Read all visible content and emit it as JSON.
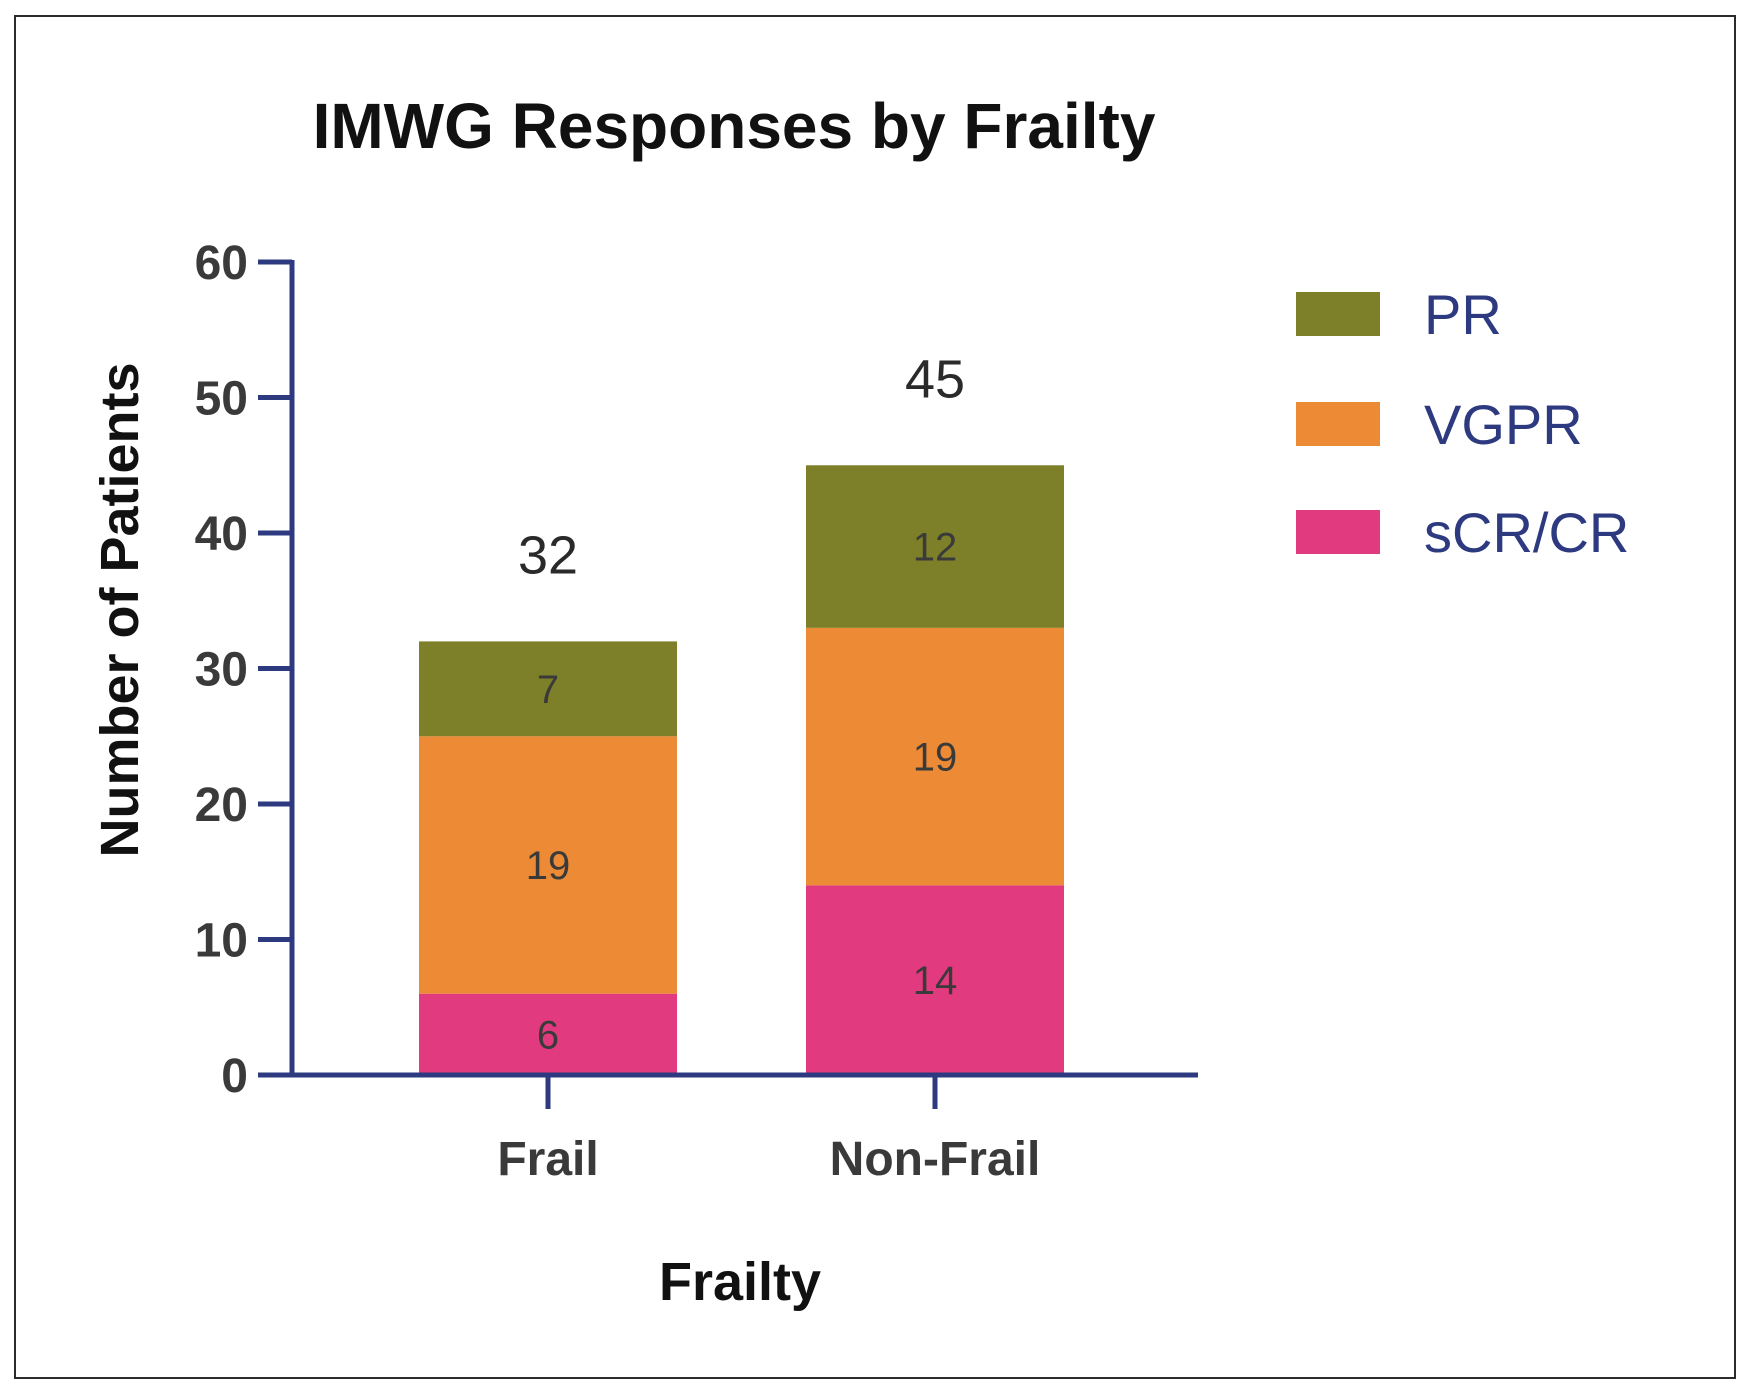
{
  "chart_data": {
    "type": "bar",
    "stacked": true,
    "title": "IMWG Responses by Frailty",
    "xlabel": "Frailty",
    "ylabel": "Number of Patients",
    "categories": [
      "Frail",
      "Non-Frail"
    ],
    "series": [
      {
        "name": "sCR/CR",
        "values": [
          6,
          14
        ],
        "color": "#e23a7e"
      },
      {
        "name": "VGPR",
        "values": [
          19,
          19
        ],
        "color": "#ec8a35"
      },
      {
        "name": "PR",
        "values": [
          7,
          12
        ],
        "color": "#7d8028"
      }
    ],
    "totals": [
      32,
      45
    ],
    "ylim": [
      0,
      60
    ],
    "yticks": [
      0,
      10,
      20,
      30,
      40,
      50,
      60
    ],
    "legend_order": [
      "PR",
      "VGPR",
      "sCR/CR"
    ],
    "legend_position": "right",
    "axis_color": "#2e3a80",
    "grid": false
  }
}
